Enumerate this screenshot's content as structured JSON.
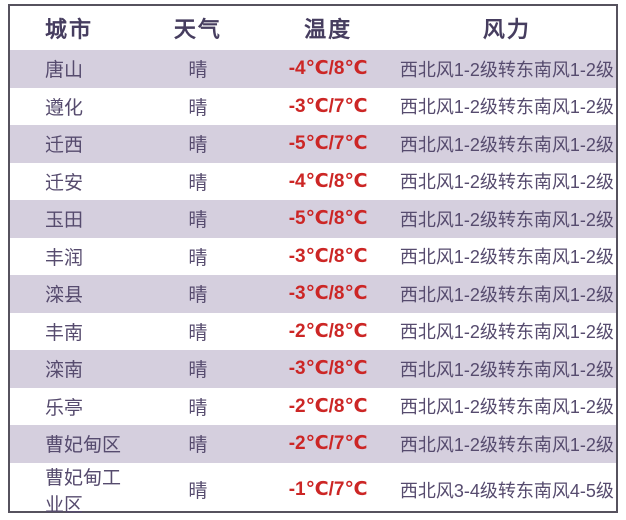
{
  "chart_data": {
    "type": "table",
    "columns": [
      "城市",
      "天气",
      "温度",
      "风力"
    ],
    "rows": [
      [
        "唐山",
        "晴",
        "-4℃/8℃",
        "西北风1-2级转东南风1-2级"
      ],
      [
        "遵化",
        "晴",
        "-3℃/7℃",
        "西北风1-2级转东南风1-2级"
      ],
      [
        "迁西",
        "晴",
        "-5℃/7℃",
        "西北风1-2级转东南风1-2级"
      ],
      [
        "迁安",
        "晴",
        "-4℃/8℃",
        "西北风1-2级转东南风1-2级"
      ],
      [
        "玉田",
        "晴",
        "-5℃/8℃",
        "西北风1-2级转东南风1-2级"
      ],
      [
        "丰润",
        "晴",
        "-3℃/8℃",
        "西北风1-2级转东南风1-2级"
      ],
      [
        "滦县",
        "晴",
        "-3℃/8℃",
        "西北风1-2级转东南风1-2级"
      ],
      [
        "丰南",
        "晴",
        "-2℃/8℃",
        "西北风1-2级转东南风1-2级"
      ],
      [
        "滦南",
        "晴",
        "-3℃/8℃",
        "西北风1-2级转东南风1-2级"
      ],
      [
        "乐亭",
        "晴",
        "-2℃/8℃",
        "西北风1-2级转东南风1-2级"
      ],
      [
        "曹妃甸区",
        "晴",
        "-2℃/7℃",
        "西北风1-2级转东南风1-2级"
      ],
      [
        "曹妃甸工业区",
        "晴",
        "-1℃/7℃",
        "西北风3-4级转东南风4-5级"
      ]
    ],
    "layout": {
      "grid": "none",
      "stripe_pattern": "odd-rows-lavender",
      "header_row": true
    }
  },
  "colors": {
    "stripe": "#d5cfde",
    "header_text": "#463d5f",
    "body_text": "#564b6e",
    "temperature_red": "#cc2625",
    "border": "#56525e"
  }
}
